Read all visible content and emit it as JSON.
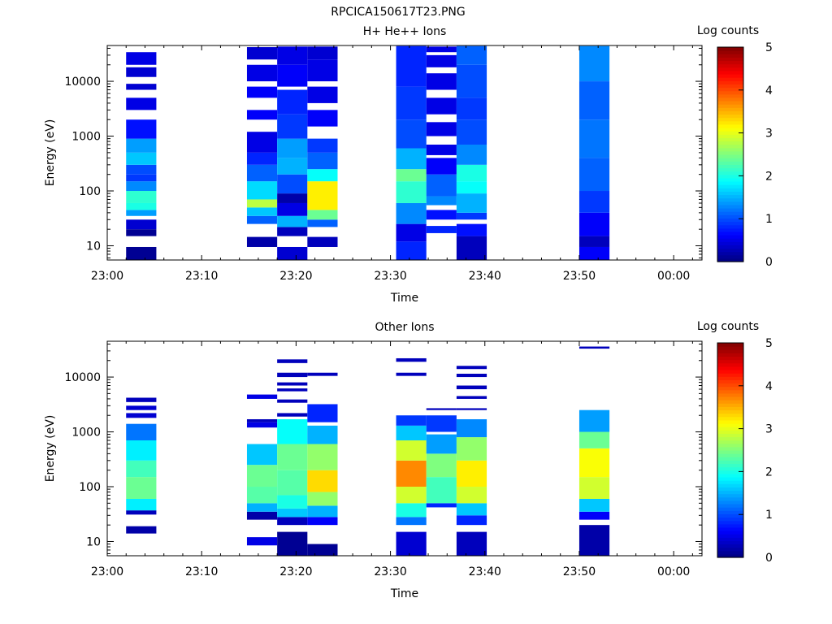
{
  "file_title": "RPCICA150617T23.PNG",
  "colors": {
    "colormap": [
      "#00007f",
      "#0000ff",
      "#007fff",
      "#00ffff",
      "#7fff7f",
      "#ffff00",
      "#ff7f00",
      "#ff0000",
      "#7f0000"
    ],
    "axes": "#000000",
    "background": "#ffffff"
  },
  "chart_data": [
    {
      "type": "heatmap",
      "title": "H+ He++ Ions",
      "xlabel": "Time",
      "ylabel": "Energy (eV)",
      "y_scale": "log",
      "ylim": [
        5.5,
        45000
      ],
      "x_ticks": [
        "23:00",
        "23:10",
        "23:20",
        "23:30",
        "23:40",
        "23:50",
        "00:00"
      ],
      "x_tick_minutes": [
        0,
        10,
        20,
        30,
        40,
        50,
        60
      ],
      "xlim_minutes": [
        0,
        63
      ],
      "y_ticks": [
        10,
        100,
        1000,
        10000
      ],
      "colorbar": {
        "label": "Log counts",
        "range": [
          0,
          5
        ],
        "ticks": [
          0,
          1,
          2,
          3,
          4,
          5
        ]
      },
      "columns": [
        {
          "t_start": 2.0,
          "t_end": 5.2,
          "bins": [
            [
              5.5,
              9.5,
              0.1
            ],
            [
              15,
              20,
              0.1
            ],
            [
              20,
              30,
              0.4
            ],
            [
              35,
              45,
              1.4
            ],
            [
              45,
              60,
              2.0
            ],
            [
              60,
              100,
              2.1
            ],
            [
              100,
              150,
              1.3
            ],
            [
              150,
              200,
              0.9
            ],
            [
              200,
              300,
              1.0
            ],
            [
              300,
              500,
              1.6
            ],
            [
              500,
              900,
              1.4
            ],
            [
              900,
              2000,
              0.7
            ],
            [
              3000,
              5000,
              0.5
            ],
            [
              7000,
              9000,
              0.4
            ],
            [
              12000,
              18000,
              0.4
            ],
            [
              20000,
              34000,
              0.5
            ]
          ]
        },
        {
          "t_start": 14.8,
          "t_end": 18.0,
          "bins": [
            [
              9.5,
              14.5,
              0.2
            ],
            [
              25,
              35,
              1.1
            ],
            [
              35,
              50,
              1.6
            ],
            [
              50,
              70,
              2.8
            ],
            [
              70,
              150,
              1.7
            ],
            [
              150,
              300,
              1.1
            ],
            [
              300,
              500,
              0.8
            ],
            [
              500,
              1200,
              0.5
            ],
            [
              2000,
              3000,
              0.6
            ],
            [
              5000,
              8000,
              0.6
            ],
            [
              10000,
              20000,
              0.5
            ],
            [
              25000,
              42000,
              0.4
            ]
          ]
        },
        {
          "t_start": 18.0,
          "t_end": 21.2,
          "bins": [
            [
              5.5,
              9.5,
              0.4
            ],
            [
              15,
              22,
              0.3
            ],
            [
              22,
              35,
              1.5
            ],
            [
              35,
              60,
              0.5
            ],
            [
              60,
              90,
              0.2
            ],
            [
              90,
              200,
              1.0
            ],
            [
              200,
              400,
              1.5
            ],
            [
              400,
              900,
              1.4
            ],
            [
              900,
              2500,
              0.9
            ],
            [
              2500,
              7000,
              0.8
            ],
            [
              8000,
              20000,
              0.6
            ],
            [
              20000,
              43000,
              0.5
            ]
          ]
        },
        {
          "t_start": 21.2,
          "t_end": 24.4,
          "bins": [
            [
              9.5,
              14.5,
              0.3
            ],
            [
              22,
              30,
              1.1
            ],
            [
              30,
              45,
              2.4
            ],
            [
              45,
              150,
              3.2
            ],
            [
              150,
              250,
              1.9
            ],
            [
              250,
              500,
              1.1
            ],
            [
              500,
              900,
              0.9
            ],
            [
              1500,
              3000,
              0.6
            ],
            [
              4000,
              8000,
              0.5
            ],
            [
              10000,
              25000,
              0.5
            ],
            [
              25000,
              43000,
              0.4
            ]
          ]
        },
        {
          "t_start": 30.6,
          "t_end": 33.8,
          "bins": [
            [
              5.5,
              12,
              0.8
            ],
            [
              12,
              25,
              0.5
            ],
            [
              25,
              60,
              1.3
            ],
            [
              60,
              150,
              2.1
            ],
            [
              150,
              250,
              2.4
            ],
            [
              250,
              600,
              1.5
            ],
            [
              600,
              2000,
              1.0
            ],
            [
              2000,
              8000,
              0.9
            ],
            [
              8000,
              44000,
              0.8
            ]
          ]
        },
        {
          "t_start": 33.8,
          "t_end": 37.0,
          "bins": [
            [
              17,
              23,
              0.8
            ],
            [
              30,
              45,
              0.7
            ],
            [
              55,
              80,
              1.3
            ],
            [
              80,
              200,
              1.1
            ],
            [
              200,
              400,
              0.6
            ],
            [
              450,
              700,
              0.5
            ],
            [
              1000,
              1800,
              0.5
            ],
            [
              2500,
              5000,
              0.5
            ],
            [
              7000,
              14000,
              0.5
            ],
            [
              18000,
              30000,
              0.5
            ],
            [
              34000,
              43000,
              0.5
            ]
          ]
        },
        {
          "t_start": 37.0,
          "t_end": 40.2,
          "bins": [
            [
              5.5,
              15,
              0.3
            ],
            [
              15,
              25,
              0.7
            ],
            [
              30,
              40,
              0.9
            ],
            [
              40,
              90,
              1.5
            ],
            [
              90,
              150,
              1.9
            ],
            [
              150,
              300,
              2.0
            ],
            [
              300,
              700,
              1.3
            ],
            [
              700,
              2000,
              1.0
            ],
            [
              2000,
              5000,
              0.9
            ],
            [
              5000,
              20000,
              1.0
            ],
            [
              20000,
              44000,
              1.1
            ]
          ]
        },
        {
          "t_start": 50.0,
          "t_end": 53.2,
          "bins": [
            [
              5.5,
              9.5,
              0.6
            ],
            [
              9.5,
              15,
              0.3
            ],
            [
              15,
              40,
              0.6
            ],
            [
              40,
              100,
              0.9
            ],
            [
              100,
              400,
              1.1
            ],
            [
              400,
              2000,
              1.2
            ],
            [
              2000,
              10000,
              1.1
            ],
            [
              10000,
              44000,
              1.3
            ]
          ]
        }
      ]
    },
    {
      "type": "heatmap",
      "title": "Other Ions",
      "xlabel": "Time",
      "ylabel": "Energy (eV)",
      "y_scale": "log",
      "ylim": [
        5.5,
        45000
      ],
      "x_ticks": [
        "23:00",
        "23:10",
        "23:20",
        "23:30",
        "23:40",
        "23:50",
        "00:00"
      ],
      "x_tick_minutes": [
        0,
        10,
        20,
        30,
        40,
        50,
        60
      ],
      "xlim_minutes": [
        0,
        63
      ],
      "y_ticks": [
        10,
        100,
        1000,
        10000
      ],
      "colorbar": {
        "label": "Log counts",
        "range": [
          0,
          5
        ],
        "ticks": [
          0,
          1,
          2,
          3,
          4,
          5
        ]
      },
      "columns": [
        {
          "t_start": 2.0,
          "t_end": 5.2,
          "bins": [
            [
              14,
              19,
              0.2
            ],
            [
              31,
              37,
              0.3
            ],
            [
              37,
              60,
              1.8
            ],
            [
              60,
              150,
              2.4
            ],
            [
              150,
              300,
              2.2
            ],
            [
              300,
              700,
              1.8
            ],
            [
              700,
              1400,
              1.2
            ],
            [
              1800,
              2200,
              0.4
            ],
            [
              2500,
              3000,
              0.4
            ],
            [
              3500,
              4200,
              0.3
            ]
          ]
        },
        {
          "t_start": 14.8,
          "t_end": 18.0,
          "bins": [
            [
              8.5,
              12,
              0.5
            ],
            [
              25,
              35,
              0.2
            ],
            [
              35,
              50,
              1.5
            ],
            [
              50,
              100,
              2.3
            ],
            [
              100,
              250,
              2.4
            ],
            [
              250,
              600,
              1.6
            ],
            [
              1200,
              1500,
              0.5
            ],
            [
              1500,
              1700,
              0.3
            ],
            [
              4000,
              4800,
              0.5
            ]
          ]
        },
        {
          "t_start": 18.0,
          "t_end": 21.2,
          "bins": [
            [
              5.5,
              15,
              0.1
            ],
            [
              20,
              28,
              0.3
            ],
            [
              28,
              40,
              1.6
            ],
            [
              40,
              70,
              2.0
            ],
            [
              70,
              200,
              2.3
            ],
            [
              200,
              600,
              2.4
            ],
            [
              600,
              1700,
              1.9
            ],
            [
              1900,
              2200,
              0.3
            ],
            [
              3400,
              3900,
              0.3
            ],
            [
              5500,
              6200,
              0.3
            ],
            [
              7000,
              8000,
              0.3
            ],
            [
              10000,
              12000,
              0.3
            ],
            [
              18000,
              21000,
              0.3
            ]
          ]
        },
        {
          "t_start": 21.2,
          "t_end": 24.4,
          "bins": [
            [
              5.5,
              9,
              0.1
            ],
            [
              20,
              28,
              0.6
            ],
            [
              28,
              45,
              1.5
            ],
            [
              45,
              80,
              2.6
            ],
            [
              80,
              200,
              3.3
            ],
            [
              200,
              600,
              2.6
            ],
            [
              600,
              1300,
              1.5
            ],
            [
              1500,
              3200,
              0.8
            ],
            [
              10500,
              12000,
              0.3
            ]
          ]
        },
        {
          "t_start": 30.6,
          "t_end": 33.8,
          "bins": [
            [
              5.5,
              15,
              0.4
            ],
            [
              20,
              28,
              1.2
            ],
            [
              28,
              50,
              2.0
            ],
            [
              50,
              100,
              2.9
            ],
            [
              100,
              300,
              3.7
            ],
            [
              300,
              700,
              2.9
            ],
            [
              700,
              1300,
              1.6
            ],
            [
              1300,
              2000,
              0.9
            ],
            [
              10500,
              12000,
              0.3
            ],
            [
              19000,
              22000,
              0.3
            ]
          ]
        },
        {
          "t_start": 33.8,
          "t_end": 37.0,
          "bins": [
            [
              42,
              50,
              0.8
            ],
            [
              50,
              150,
              2.2
            ],
            [
              150,
              400,
              2.5
            ],
            [
              400,
              900,
              1.4
            ],
            [
              1000,
              2000,
              0.9
            ],
            [
              2500,
              2700,
              0.3
            ]
          ]
        },
        {
          "t_start": 37.0,
          "t_end": 40.2,
          "bins": [
            [
              5.5,
              15,
              0.3
            ],
            [
              20,
              30,
              0.8
            ],
            [
              30,
              50,
              1.6
            ],
            [
              50,
              100,
              2.9
            ],
            [
              100,
              300,
              3.2
            ],
            [
              300,
              800,
              2.6
            ],
            [
              800,
              1700,
              1.3
            ],
            [
              2500,
              2700,
              0.3
            ],
            [
              4000,
              4500,
              0.3
            ],
            [
              6000,
              7000,
              0.3
            ],
            [
              10000,
              11500,
              0.3
            ],
            [
              14000,
              16000,
              0.3
            ]
          ]
        },
        {
          "t_start": 50.0,
          "t_end": 53.2,
          "bins": [
            [
              5.5,
              20,
              0.2
            ],
            [
              25,
              35,
              0.6
            ],
            [
              35,
              60,
              1.6
            ],
            [
              60,
              150,
              2.9
            ],
            [
              150,
              500,
              3.1
            ],
            [
              500,
              1000,
              2.4
            ],
            [
              1000,
              2500,
              1.4
            ],
            [
              33000,
              36000,
              0.3
            ]
          ]
        }
      ]
    }
  ]
}
